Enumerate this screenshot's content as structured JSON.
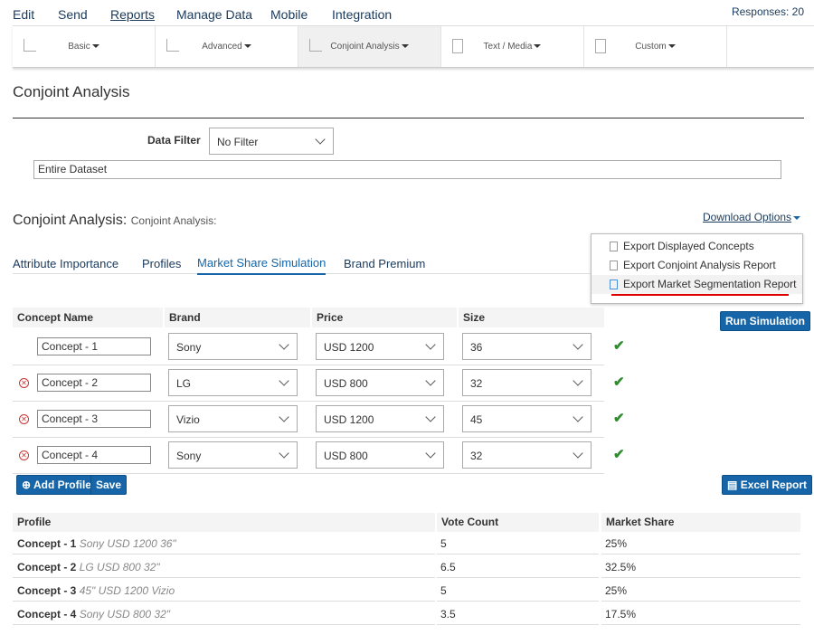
{
  "nav": {
    "items": [
      "Edit",
      "Send",
      "Reports",
      "Manage Data",
      "Mobile",
      "Integration"
    ],
    "active": "Reports",
    "responses": "Responses: 20"
  },
  "toolbar": [
    {
      "label": "Basic",
      "icon": "line-chart-icon"
    },
    {
      "label": "Advanced",
      "icon": "scatter-chart-icon"
    },
    {
      "label": "Conjoint Analysis",
      "icon": "bar-chart-icon",
      "selected": true
    },
    {
      "label": "Text / Media",
      "icon": "document-icon"
    },
    {
      "label": "Custom",
      "icon": "custom-report-icon"
    }
  ],
  "page_title": "Conjoint Analysis",
  "filter": {
    "label": "Data Filter",
    "value": "No Filter",
    "dataset": "Entire Dataset"
  },
  "section": {
    "title": "Conjoint Analysis:",
    "subtitle": "Conjoint Analysis:",
    "download": "Download Options"
  },
  "tabs": [
    "Attribute Importance",
    "Profiles",
    "Market Share Simulation",
    "Brand Premium"
  ],
  "active_tab": "Market Share Simulation",
  "menu": [
    "Export Displayed Concepts",
    "Export Conjoint Analysis Report",
    "Export Market Segmentation Report"
  ],
  "sim": {
    "headers": [
      "Concept Name",
      "Brand",
      "Price",
      "Size"
    ],
    "rows": [
      {
        "name": "Concept - 1",
        "brand": "Sony",
        "price": "USD 1200",
        "size": "36",
        "removable": false
      },
      {
        "name": "Concept - 2",
        "brand": "LG",
        "price": "USD 800",
        "size": "32",
        "removable": true
      },
      {
        "name": "Concept - 3",
        "brand": "Vizio",
        "price": "USD 1200",
        "size": "45",
        "removable": true
      },
      {
        "name": "Concept - 4",
        "brand": "Sony",
        "price": "USD 800",
        "size": "32",
        "removable": true
      }
    ],
    "run": "Run Simulation",
    "add": "Add Profile",
    "save": "Save",
    "excel": "Excel Report"
  },
  "results": {
    "headers": [
      "Profile",
      "Vote Count",
      "Market Share"
    ],
    "rows": [
      {
        "name": "Concept - 1",
        "desc": "Sony USD 1200 36\"",
        "votes": "5",
        "share": "25%"
      },
      {
        "name": "Concept - 2",
        "desc": "LG USD 800 32\"",
        "votes": "6.5",
        "share": "32.5%"
      },
      {
        "name": "Concept - 3",
        "desc": "45\" USD 1200 Vizio",
        "votes": "5",
        "share": "25%"
      },
      {
        "name": "Concept - 4",
        "desc": "Sony USD 800 32\"",
        "votes": "3.5",
        "share": "17.5%"
      }
    ]
  },
  "colors": {
    "accent": "#1565a8",
    "check": "#2e8b2e",
    "highlight": "#e00000"
  }
}
